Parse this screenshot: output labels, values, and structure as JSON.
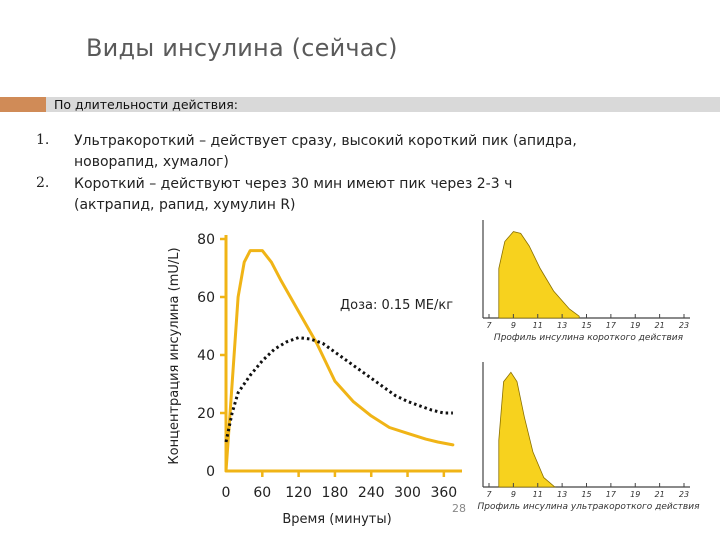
{
  "slide": {
    "title": "Виды инсулина (сейчас)",
    "subtitle_band": "По длительности действия:",
    "accent_color": "#d08b57",
    "band_color": "#d9d9d9",
    "page_number": "28"
  },
  "list": [
    {
      "num": "1.",
      "line1": "Ультракороткий – действует сразу, высокий короткий пик (апидра,",
      "line2": "новорапид, хумалог)"
    },
    {
      "num": "2.",
      "line1": "Короткий – действуют через 30 мин имеют пик через 2-3 ч",
      "line2": "(актрапид, рапид, хумулин R)"
    }
  ],
  "chart_data": [
    {
      "type": "line",
      "xlabel": "Время (минуты)",
      "ylabel": "Концентрация инсулина (mU/L)",
      "annotation": "Доза: 0.15 МЕ/кг",
      "x_ticks": [
        "0",
        "60",
        "120",
        "180",
        "240",
        "300",
        "360"
      ],
      "y_ticks": [
        "0",
        "20",
        "40",
        "60",
        "80"
      ],
      "xlim": [
        0,
        390
      ],
      "ylim": [
        0,
        80
      ],
      "axis_color": "#f0b416",
      "series": [
        {
          "style": "solid",
          "color": "#f0b416",
          "x": [
            0,
            10,
            20,
            30,
            40,
            50,
            60,
            75,
            90,
            120,
            150,
            180,
            210,
            240,
            270,
            300,
            330,
            350,
            375
          ],
          "y": [
            0,
            30,
            60,
            72,
            76,
            76,
            76,
            72,
            66,
            55,
            44,
            31,
            24,
            19,
            15,
            13,
            11,
            10,
            9
          ]
        },
        {
          "style": "dotted",
          "color": "#111111",
          "x": [
            0,
            10,
            20,
            40,
            60,
            80,
            100,
            120,
            140,
            160,
            180,
            200,
            220,
            240,
            260,
            280,
            300,
            320,
            340,
            360,
            375
          ],
          "y": [
            10,
            20,
            27,
            33,
            38,
            42,
            44.5,
            46,
            45.5,
            44,
            41,
            38,
            35,
            32,
            29,
            26,
            24,
            22.5,
            21,
            20,
            20
          ]
        }
      ]
    },
    {
      "type": "area",
      "title": "Профиль инсулина короткого действия",
      "x_ticks": [
        "7",
        "9",
        "11",
        "13",
        "15",
        "17",
        "19",
        "21",
        "23"
      ],
      "fill": "#f7d21e",
      "x": [
        7.8,
        8.3,
        9.0,
        9.6,
        10.3,
        11.2,
        12.3,
        13.6,
        14.4
      ],
      "y": [
        0.55,
        0.85,
        0.96,
        0.94,
        0.8,
        0.55,
        0.3,
        0.1,
        0.02
      ]
    },
    {
      "type": "area",
      "title": "Профиль инсулина ультракороткого действия",
      "x_ticks": [
        "7",
        "9",
        "11",
        "13",
        "15",
        "17",
        "19",
        "21",
        "23"
      ],
      "fill": "#f7d21e",
      "x": [
        7.8,
        8.2,
        8.8,
        9.3,
        9.9,
        10.6,
        11.5,
        12.4
      ],
      "y": [
        0.4,
        0.9,
        0.98,
        0.9,
        0.6,
        0.3,
        0.08,
        0.0
      ]
    }
  ]
}
